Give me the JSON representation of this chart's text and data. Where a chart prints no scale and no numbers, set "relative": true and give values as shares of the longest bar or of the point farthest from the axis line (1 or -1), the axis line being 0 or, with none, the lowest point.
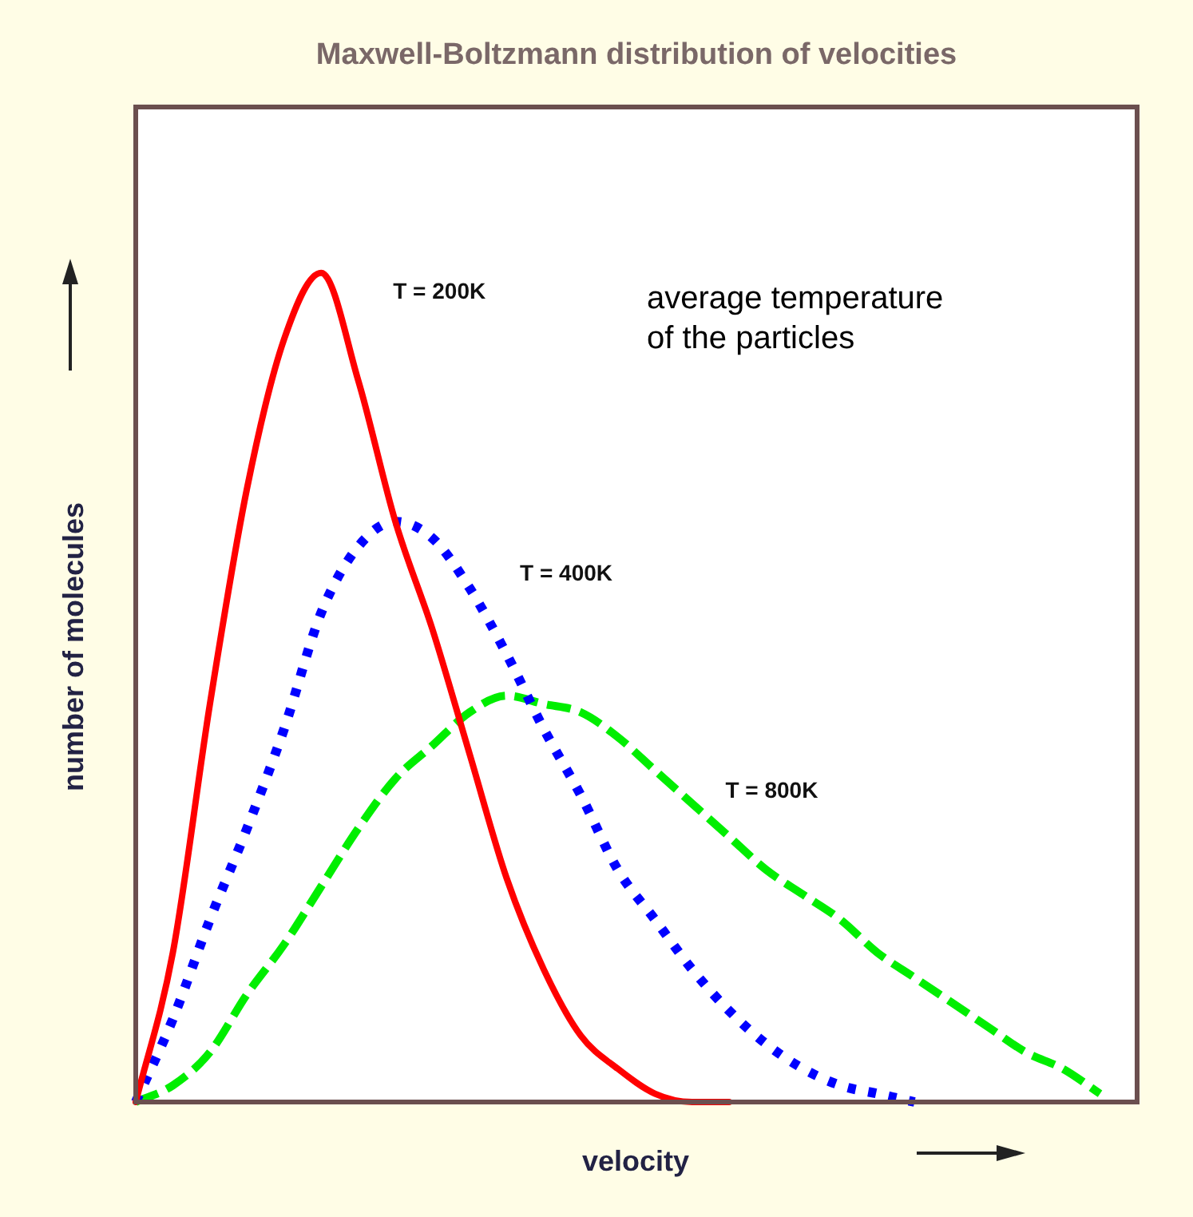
{
  "chart_data": {
    "type": "line",
    "title": "Maxwell-Boltzmann distribution of velocities",
    "xlabel": "velocity",
    "ylabel": "number of molecules",
    "relative": true,
    "marker": "none",
    "categories": [
      null,
      null,
      null,
      null,
      null,
      null,
      null,
      null,
      null,
      null,
      null,
      null,
      null,
      null,
      null,
      null,
      null,
      null,
      null,
      null,
      null,
      null,
      null,
      null,
      null,
      null,
      null,
      null
    ],
    "series": [
      {
        "name": "T = 200K",
        "color": "#ff0000",
        "line_style": "solid",
        "values": [
          0,
          0.18,
          0.48,
          0.74,
          0.92,
          1,
          0.87,
          0.7,
          0.57,
          0.42,
          0.27,
          0.16,
          0.08,
          0.04,
          0.01,
          0,
          0,
          null,
          null,
          null,
          null,
          null,
          null,
          null,
          null,
          null,
          null,
          null
        ]
      },
      {
        "name": "T = 400K",
        "color": "#0000ff",
        "line_style": "dotted",
        "values": [
          0,
          0.1,
          0.22,
          0.33,
          0.45,
          0.59,
          0.67,
          0.7,
          0.68,
          0.62,
          0.54,
          0.45,
          0.37,
          0.28,
          0.22,
          0.16,
          0.11,
          0.07,
          0.04,
          0.02,
          0.01,
          0,
          null,
          null,
          null,
          null,
          null,
          null
        ]
      },
      {
        "name": "T = 800K",
        "color": "#00ee00",
        "line_style": "dashed",
        "values": [
          0,
          0.02,
          0.06,
          0.13,
          0.19,
          0.26,
          0.33,
          0.39,
          0.43,
          0.47,
          0.49,
          0.48,
          0.47,
          0.44,
          0.4,
          0.36,
          0.32,
          0.28,
          0.25,
          0.22,
          0.18,
          0.15,
          0.12,
          0.09,
          0.06,
          0.04,
          0.01,
          null
        ]
      }
    ],
    "annotations": [
      "average temperature\nof the particles"
    ]
  }
}
